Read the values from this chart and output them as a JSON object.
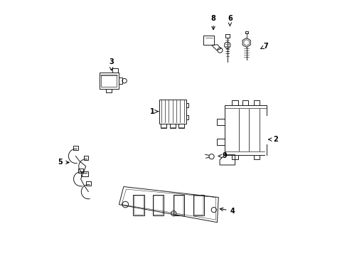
{
  "background_color": "#ffffff",
  "line_color": "#1a1a1a",
  "figsize": [
    4.89,
    3.6
  ],
  "dpi": 100,
  "lw": 0.7,
  "labels": {
    "1": [
      0.415,
      0.565,
      0.448,
      0.565
    ],
    "2": [
      0.9,
      0.455,
      0.868,
      0.455
    ],
    "3": [
      0.255,
      0.76,
      0.255,
      0.715
    ],
    "4": [
      0.73,
      0.175,
      0.67,
      0.185
    ],
    "5": [
      0.055,
      0.365,
      0.1,
      0.365
    ],
    "6": [
      0.72,
      0.93,
      0.72,
      0.89
    ],
    "7": [
      0.86,
      0.82,
      0.838,
      0.81
    ],
    "8": [
      0.655,
      0.93,
      0.655,
      0.875
    ],
    "9": [
      0.7,
      0.39,
      0.672,
      0.39
    ]
  }
}
